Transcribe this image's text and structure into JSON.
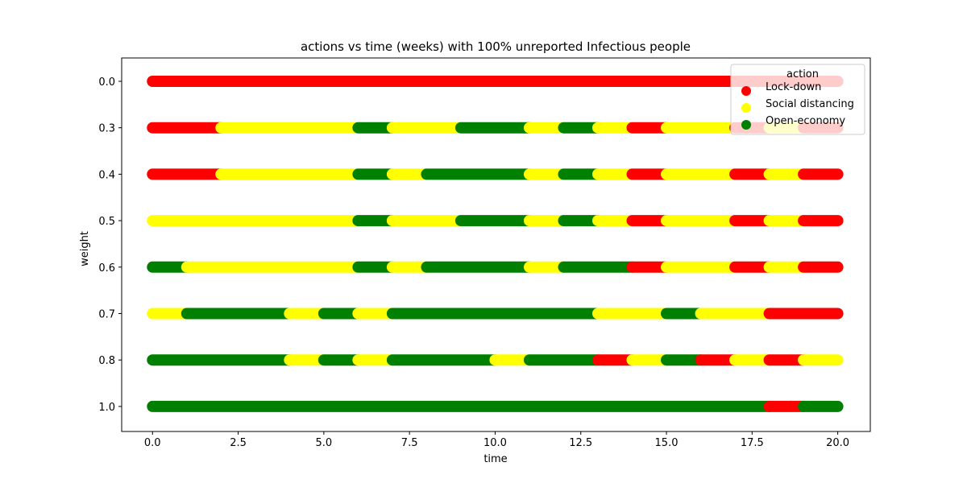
{
  "chart_data": {
    "type": "scatter",
    "title": "actions vs time (weeks) with 100% unreported Infectious people",
    "xlabel": "time",
    "ylabel": "weight",
    "xlim": [
      -0.9,
      20.95
    ],
    "x_ticks": [
      "0.0",
      "2.5",
      "5.0",
      "7.5",
      "10.0",
      "12.5",
      "15.0",
      "17.5",
      "20.0"
    ],
    "x_tick_values": [
      0,
      2.5,
      5,
      7.5,
      10,
      12.5,
      15,
      17.5,
      20
    ],
    "y_categories": [
      "0.0",
      "0.3",
      "0.4",
      "0.5",
      "0.6",
      "0.7",
      "0.8",
      "1.0"
    ],
    "legend": {
      "title": "action",
      "placement": "top-right",
      "entries": [
        {
          "label": "Lock-down",
          "color": "#ff0000"
        },
        {
          "label": "Social distancing",
          "color": "#ffff00"
        },
        {
          "label": "Open-economy",
          "color": "#008000"
        }
      ]
    },
    "series": [
      {
        "weight": "0.0",
        "segments": [
          {
            "start": 0,
            "end": 20,
            "action": "Lock-down"
          }
        ]
      },
      {
        "weight": "0.3",
        "segments": [
          {
            "start": 0,
            "end": 2,
            "action": "Lock-down"
          },
          {
            "start": 2,
            "end": 6,
            "action": "Social distancing"
          },
          {
            "start": 6,
            "end": 7,
            "action": "Open-economy"
          },
          {
            "start": 7,
            "end": 9,
            "action": "Social distancing"
          },
          {
            "start": 9,
            "end": 11,
            "action": "Open-economy"
          },
          {
            "start": 11,
            "end": 12,
            "action": "Social distancing"
          },
          {
            "start": 12,
            "end": 13,
            "action": "Open-economy"
          },
          {
            "start": 13,
            "end": 14,
            "action": "Social distancing"
          },
          {
            "start": 14,
            "end": 15,
            "action": "Lock-down"
          },
          {
            "start": 15,
            "end": 17,
            "action": "Social distancing"
          },
          {
            "start": 17,
            "end": 18,
            "action": "Lock-down"
          },
          {
            "start": 18,
            "end": 19,
            "action": "Social distancing"
          },
          {
            "start": 19,
            "end": 20,
            "action": "Lock-down"
          }
        ]
      },
      {
        "weight": "0.4",
        "segments": [
          {
            "start": 0,
            "end": 2,
            "action": "Lock-down"
          },
          {
            "start": 2,
            "end": 6,
            "action": "Social distancing"
          },
          {
            "start": 6,
            "end": 7,
            "action": "Open-economy"
          },
          {
            "start": 7,
            "end": 8,
            "action": "Social distancing"
          },
          {
            "start": 8,
            "end": 11,
            "action": "Open-economy"
          },
          {
            "start": 11,
            "end": 12,
            "action": "Social distancing"
          },
          {
            "start": 12,
            "end": 13,
            "action": "Open-economy"
          },
          {
            "start": 13,
            "end": 14,
            "action": "Social distancing"
          },
          {
            "start": 14,
            "end": 15,
            "action": "Lock-down"
          },
          {
            "start": 15,
            "end": 17,
            "action": "Social distancing"
          },
          {
            "start": 17,
            "end": 18,
            "action": "Lock-down"
          },
          {
            "start": 18,
            "end": 19,
            "action": "Social distancing"
          },
          {
            "start": 19,
            "end": 20,
            "action": "Lock-down"
          }
        ]
      },
      {
        "weight": "0.5",
        "segments": [
          {
            "start": 0,
            "end": 6,
            "action": "Social distancing"
          },
          {
            "start": 6,
            "end": 7,
            "action": "Open-economy"
          },
          {
            "start": 7,
            "end": 9,
            "action": "Social distancing"
          },
          {
            "start": 9,
            "end": 11,
            "action": "Open-economy"
          },
          {
            "start": 11,
            "end": 12,
            "action": "Social distancing"
          },
          {
            "start": 12,
            "end": 13,
            "action": "Open-economy"
          },
          {
            "start": 13,
            "end": 14,
            "action": "Social distancing"
          },
          {
            "start": 14,
            "end": 15,
            "action": "Lock-down"
          },
          {
            "start": 15,
            "end": 17,
            "action": "Social distancing"
          },
          {
            "start": 17,
            "end": 18,
            "action": "Lock-down"
          },
          {
            "start": 18,
            "end": 19,
            "action": "Social distancing"
          },
          {
            "start": 19,
            "end": 20,
            "action": "Lock-down"
          }
        ]
      },
      {
        "weight": "0.6",
        "segments": [
          {
            "start": 0,
            "end": 1,
            "action": "Open-economy"
          },
          {
            "start": 1,
            "end": 6,
            "action": "Social distancing"
          },
          {
            "start": 6,
            "end": 7,
            "action": "Open-economy"
          },
          {
            "start": 7,
            "end": 8,
            "action": "Social distancing"
          },
          {
            "start": 8,
            "end": 11,
            "action": "Open-economy"
          },
          {
            "start": 11,
            "end": 12,
            "action": "Social distancing"
          },
          {
            "start": 12,
            "end": 14,
            "action": "Open-economy"
          },
          {
            "start": 14,
            "end": 15,
            "action": "Lock-down"
          },
          {
            "start": 15,
            "end": 17,
            "action": "Social distancing"
          },
          {
            "start": 17,
            "end": 18,
            "action": "Lock-down"
          },
          {
            "start": 18,
            "end": 19,
            "action": "Social distancing"
          },
          {
            "start": 19,
            "end": 20,
            "action": "Lock-down"
          }
        ]
      },
      {
        "weight": "0.7",
        "segments": [
          {
            "start": 0,
            "end": 1,
            "action": "Social distancing"
          },
          {
            "start": 1,
            "end": 4,
            "action": "Open-economy"
          },
          {
            "start": 4,
            "end": 5,
            "action": "Social distancing"
          },
          {
            "start": 5,
            "end": 6,
            "action": "Open-economy"
          },
          {
            "start": 6,
            "end": 7,
            "action": "Social distancing"
          },
          {
            "start": 7,
            "end": 13,
            "action": "Open-economy"
          },
          {
            "start": 13,
            "end": 15,
            "action": "Social distancing"
          },
          {
            "start": 15,
            "end": 16,
            "action": "Open-economy"
          },
          {
            "start": 16,
            "end": 18,
            "action": "Social distancing"
          },
          {
            "start": 18,
            "end": 20,
            "action": "Lock-down"
          }
        ]
      },
      {
        "weight": "0.8",
        "segments": [
          {
            "start": 0,
            "end": 4,
            "action": "Open-economy"
          },
          {
            "start": 4,
            "end": 5,
            "action": "Social distancing"
          },
          {
            "start": 5,
            "end": 6,
            "action": "Open-economy"
          },
          {
            "start": 6,
            "end": 7,
            "action": "Social distancing"
          },
          {
            "start": 7,
            "end": 10,
            "action": "Open-economy"
          },
          {
            "start": 10,
            "end": 11,
            "action": "Social distancing"
          },
          {
            "start": 11,
            "end": 13,
            "action": "Open-economy"
          },
          {
            "start": 13,
            "end": 14,
            "action": "Lock-down"
          },
          {
            "start": 14,
            "end": 15,
            "action": "Social distancing"
          },
          {
            "start": 15,
            "end": 16,
            "action": "Open-economy"
          },
          {
            "start": 16,
            "end": 17,
            "action": "Lock-down"
          },
          {
            "start": 17,
            "end": 18,
            "action": "Social distancing"
          },
          {
            "start": 18,
            "end": 19,
            "action": "Lock-down"
          },
          {
            "start": 19,
            "end": 20,
            "action": "Social distancing"
          }
        ]
      },
      {
        "weight": "1.0",
        "segments": [
          {
            "start": 0,
            "end": 18,
            "action": "Open-economy"
          },
          {
            "start": 18,
            "end": 19,
            "action": "Lock-down"
          },
          {
            "start": 19,
            "end": 20,
            "action": "Open-economy"
          }
        ]
      }
    ]
  }
}
